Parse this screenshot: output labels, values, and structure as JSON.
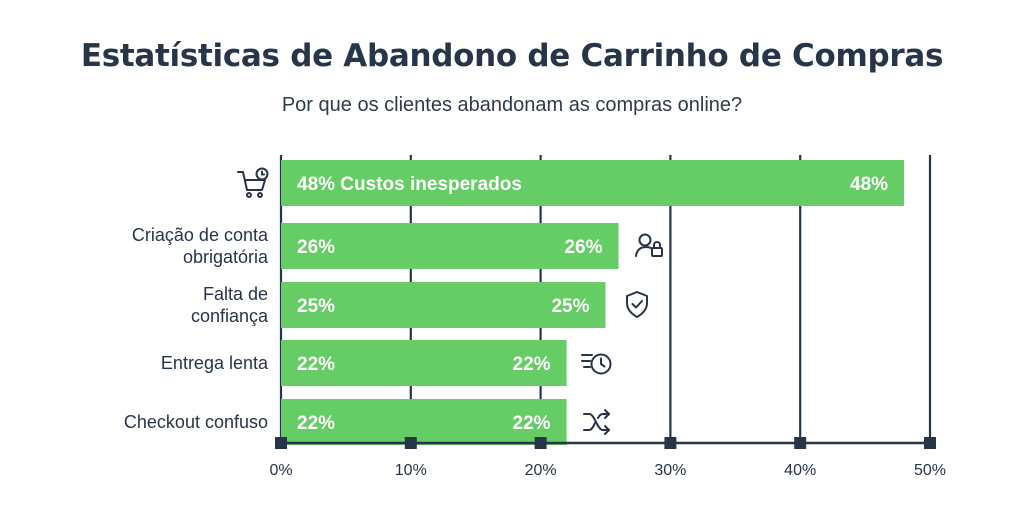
{
  "title": "Estatísticas de Abandono de Carrinho de Compras",
  "subtitle": "Por que os clientes abandonam as compras online?",
  "colors": {
    "bar": "#66cc66",
    "axis": "#263548",
    "text": "#263548"
  },
  "chart_data": {
    "type": "bar",
    "orientation": "horizontal",
    "title": "Estatísticas de Abandono de Carrinho de Compras",
    "subtitle": "Por que os clientes abandonam as compras online?",
    "categories": [
      "Custos inesperados",
      "Criação de conta obrigatória",
      "Falta de confiança",
      "Entrega lenta",
      "Checkout confuso"
    ],
    "category_lines": [
      [
        "Custos inesperados"
      ],
      [
        "Criação de conta",
        "obrigatória"
      ],
      [
        "Falta de",
        "confiança"
      ],
      [
        "Entrega lenta"
      ],
      [
        "Checkout confuso"
      ]
    ],
    "values": [
      48,
      26,
      25,
      22,
      22
    ],
    "value_labels": [
      "48%",
      "26%",
      "25%",
      "22%",
      "22%"
    ],
    "inside_labels": [
      "48% Custos inesperados",
      "26%",
      "25%",
      "22%",
      "22%"
    ],
    "icons": [
      "shopping-cart-clock-icon",
      "user-lock-icon",
      "shield-check-icon",
      "fast-clock-icon",
      "shuffle-icon"
    ],
    "xlim": [
      0,
      50
    ],
    "xticks": [
      0,
      10,
      20,
      30,
      40,
      50
    ],
    "xtick_labels": [
      "0%",
      "10%",
      "20%",
      "30%",
      "40%",
      "50%"
    ],
    "grid": true,
    "legend": "none"
  }
}
